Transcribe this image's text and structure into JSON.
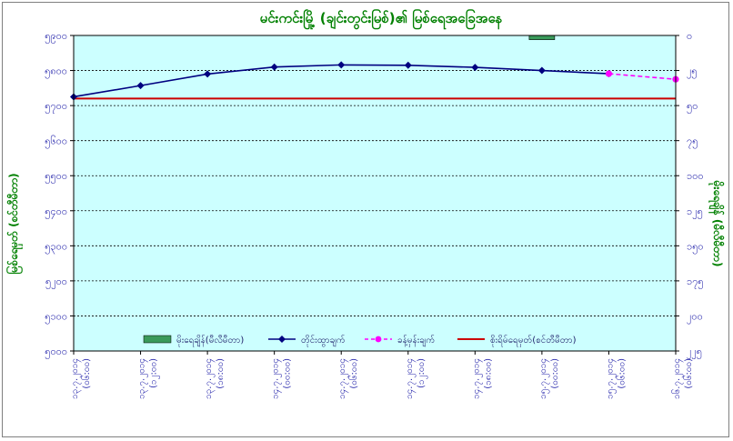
{
  "chart_data": {
    "type": "line",
    "title": "မင်းကင်းမြို့ (ချင်းတွင်းမြစ်)၏ မြစ်ရေအခြေအနေ",
    "ylabel_left": "မြစ်ရေမှတ် (စင်တီမီတာ)",
    "ylabel_right": "မိုးရေချိန် (မီလီမီတာ)",
    "left_axis": {
      "ylim": [
        5000,
        5900
      ],
      "ticks": [
        5000,
        5100,
        5200,
        5300,
        5400,
        5500,
        5600,
        5700,
        5800,
        5900
      ],
      "tick_labels": [
        "၅၀၀၀",
        "၅၁၀၀",
        "၅၂၀၀",
        "၅၃၀၀",
        "၅၄၀၀",
        "၅၅၀၀",
        "၅၆၀၀",
        "၅၇၀၀",
        "၅၈၀၀",
        "၅၉၀၀"
      ]
    },
    "right_axis": {
      "ylim": [
        0,
        225
      ],
      "inverted": true,
      "ticks": [
        0,
        25,
        50,
        75,
        100,
        125,
        150,
        175,
        200,
        225
      ],
      "tick_labels": [
        "၀",
        "၂၅",
        "၅၀",
        "၇၅",
        "၁၀၀",
        "၁၂၅",
        "၁၅၀",
        "၁၇၅",
        "၂၀၀",
        "၂၂၅"
      ]
    },
    "categories": [
      "၁၃.၇.၂၀၁၄ (၀၆:၀၀)",
      "၁၃.၇.၂၀၁၄ (၁၂:၀၀)",
      "၁၃.၇.၂၀၁၄ (၁၈:၀၀)",
      "၁၄.၇.၂၀၁၄ (၀၀:၀၀)",
      "၁၄.၇.၂၀၁၄ (၀၆:၀၀)",
      "၁၄.၇.၂၀၁၄ (၁၂:၀၀)",
      "၁၄.၇.၂၀၁၄ (၁၈:၀၀)",
      "၁၅.၇.၂၀၁၄ (၀၀:၀၀)",
      "၁၅.၇.၂၀၁၄ (၀၆:၀၀)",
      "၁၆.၇.၂၀၁၄ (၀၆:၀၀)"
    ],
    "series": [
      {
        "name": "မိုးရေချိန်(မီလီမီတာ)",
        "kind": "bar",
        "axis": "right",
        "color": "#3a9a5a",
        "values": [
          null,
          null,
          null,
          null,
          null,
          null,
          null,
          3,
          null,
          null
        ]
      },
      {
        "name": "တိုင်းထွာချက်",
        "kind": "line",
        "axis": "left",
        "color": "#000080",
        "marker": "diamond",
        "values": [
          5725,
          5757,
          5790,
          5810,
          5816,
          5815,
          5809,
          5800,
          5791,
          null
        ]
      },
      {
        "name": "ခန့်မှန်းချက်",
        "kind": "line",
        "axis": "left",
        "color": "#ff00ff",
        "marker": "circle",
        "dashed": true,
        "values": [
          null,
          null,
          null,
          null,
          null,
          null,
          null,
          null,
          5791,
          5775
        ]
      },
      {
        "name": "စိုးရိမ်ရေမှတ်(စင်တီမီတာ)",
        "kind": "hline",
        "axis": "left",
        "color": "#cc0000",
        "value": 5720
      }
    ],
    "grid": true,
    "background": "#ccffff",
    "legend_position": "bottom-inside"
  }
}
